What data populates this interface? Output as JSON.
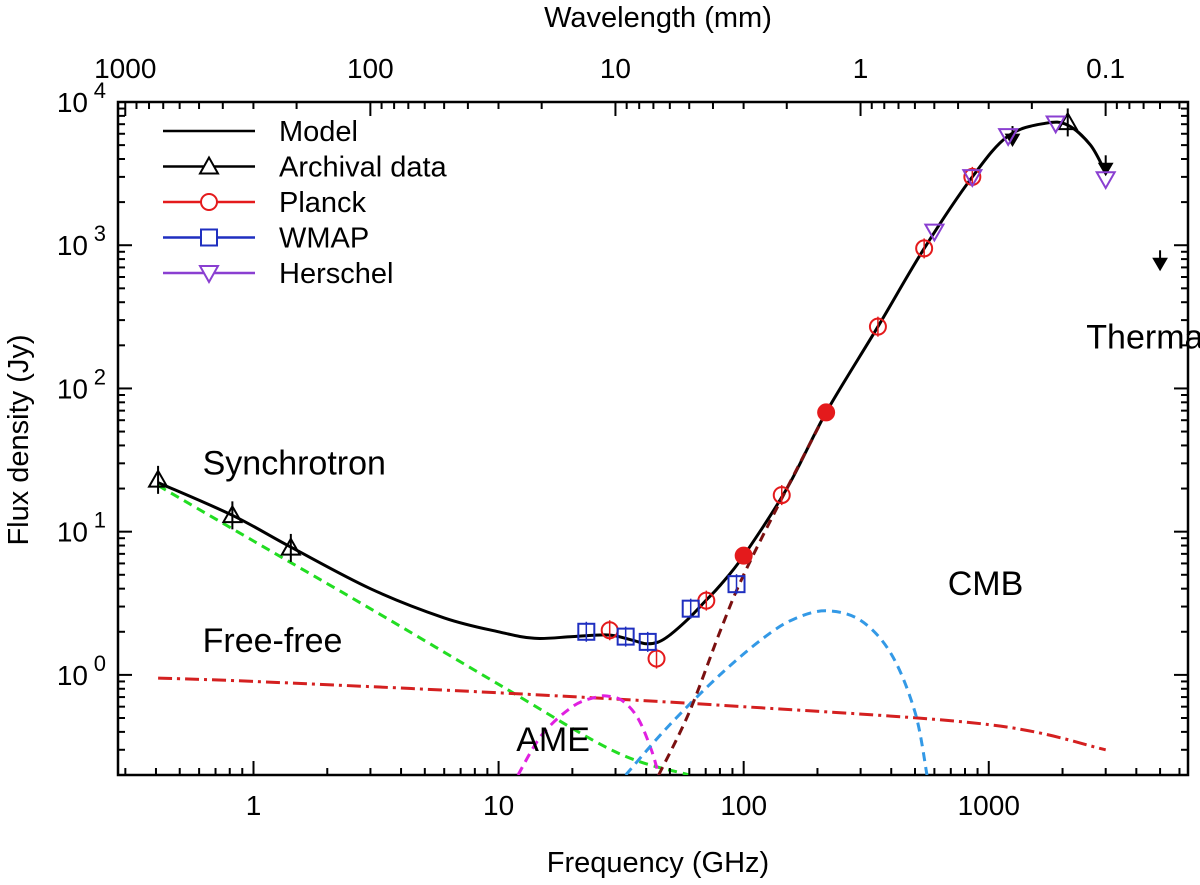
{
  "chart_data": {
    "type": "scatter",
    "title": "",
    "xlabel": "Frequency (GHz)",
    "ylabel": "Flux density (Jy)",
    "x2label": "Wavelength (mm)",
    "xscale": "log",
    "yscale": "log",
    "xlim": [
      0.28,
      6500
    ],
    "ylim": [
      0.2,
      10000
    ],
    "x_ticks": [
      {
        "value": 1,
        "label": "1"
      },
      {
        "value": 10,
        "label": "10"
      },
      {
        "value": 100,
        "label": "100"
      },
      {
        "value": 1000,
        "label": "1000"
      }
    ],
    "y_ticks": [
      {
        "value": 1,
        "base": "10",
        "exp": "0"
      },
      {
        "value": 10,
        "base": "10",
        "exp": "1"
      },
      {
        "value": 100,
        "base": "10",
        "exp": "2"
      },
      {
        "value": 1000,
        "base": "10",
        "exp": "3"
      },
      {
        "value": 10000,
        "base": "10",
        "exp": "4"
      }
    ],
    "x2_ticks": [
      {
        "wavelength_mm": 1000,
        "label": "1000"
      },
      {
        "wavelength_mm": 100,
        "label": "100"
      },
      {
        "wavelength_mm": 10,
        "label": "10"
      },
      {
        "wavelength_mm": 1,
        "label": "1"
      },
      {
        "wavelength_mm": 0.1,
        "label": "0.1"
      }
    ],
    "legend": {
      "position": "top-left",
      "entries": [
        {
          "label": "Model",
          "color": "#000000",
          "marker": "none"
        },
        {
          "label": "Archival data",
          "color": "#000000",
          "marker": "triangle-up"
        },
        {
          "label": "Planck",
          "color": "#e41a1c",
          "marker": "circle"
        },
        {
          "label": "WMAP",
          "color": "#1f2fc0",
          "marker": "square"
        },
        {
          "label": "Herschel",
          "color": "#8a3fd1",
          "marker": "triangle-down"
        }
      ]
    },
    "series": [
      {
        "name": "Archival data",
        "color": "#000000",
        "marker": "triangle-up",
        "x": [
          0.408,
          0.82,
          1.42,
          2100
        ],
        "y": [
          23,
          13,
          7.7,
          7200
        ]
      },
      {
        "name": "Archival data (upper limits)",
        "color": "#000000",
        "marker": "arrow-down",
        "x": [
          1250,
          3000,
          5000
        ],
        "y": [
          5600,
          3500,
          760
        ]
      },
      {
        "name": "Planck",
        "color": "#e41a1c",
        "marker": "circle",
        "x": [
          28.4,
          44.1,
          70.4,
          143,
          353,
          545,
          857
        ],
        "y": [
          2.05,
          1.3,
          3.3,
          18,
          270,
          950,
          3000
        ]
      },
      {
        "name": "Planck (filled)",
        "color": "#e41a1c",
        "marker": "circle-filled",
        "x": [
          100,
          217
        ],
        "y": [
          6.8,
          68
        ]
      },
      {
        "name": "WMAP",
        "color": "#1f2fc0",
        "marker": "square",
        "x": [
          22.8,
          33,
          40.6,
          60.8,
          93.5
        ],
        "y": [
          2.0,
          1.85,
          1.7,
          2.9,
          4.3
        ]
      },
      {
        "name": "Herschel",
        "color": "#8a3fd1",
        "marker": "triangle-down",
        "x": [
          600,
          857,
          1200,
          1875,
          3000
        ],
        "y": [
          1250,
          3000,
          5800,
          7100,
          2900
        ]
      }
    ],
    "curves": [
      {
        "name": "Model",
        "color": "#000000",
        "style": "solid",
        "x": [
          0.408,
          0.82,
          1.42,
          3,
          6,
          10,
          14,
          20,
          28,
          35,
          40,
          45,
          50,
          60,
          70,
          80,
          100,
          150,
          217,
          353,
          545,
          857,
          1200,
          1700,
          2100,
          2600,
          3000
        ],
        "y": [
          22,
          13,
          7.8,
          4.0,
          2.5,
          2.0,
          1.8,
          1.85,
          1.9,
          1.75,
          1.65,
          1.7,
          1.9,
          2.5,
          3.3,
          4.2,
          6.8,
          20,
          68,
          270,
          950,
          3000,
          5800,
          7100,
          6900,
          5000,
          3200
        ]
      },
      {
        "name": "Synchrotron",
        "color": "#22dd22",
        "style": "dashed",
        "x": [
          0.408,
          1,
          3,
          10,
          30,
          60
        ],
        "y": [
          21,
          8.6,
          2.9,
          0.86,
          0.29,
          0.2
        ]
      },
      {
        "name": "Free-free",
        "color": "#d42020",
        "style": "dash-dot",
        "x": [
          0.408,
          1,
          10,
          100,
          1000,
          3000
        ],
        "y": [
          0.95,
          0.9,
          0.75,
          0.6,
          0.45,
          0.3
        ]
      },
      {
        "name": "AME",
        "color": "#e020e0",
        "style": "dashed",
        "x": [
          12,
          15,
          20,
          25,
          28,
          32,
          37,
          42,
          45
        ],
        "y": [
          0.2,
          0.38,
          0.6,
          0.7,
          0.71,
          0.66,
          0.5,
          0.3,
          0.2
        ]
      },
      {
        "name": "CMB",
        "color": "#3399e6",
        "style": "dashed",
        "x": [
          33,
          50,
          80,
          120,
          160,
          217,
          300,
          400,
          500,
          560
        ],
        "y": [
          0.2,
          0.45,
          1.0,
          1.8,
          2.45,
          2.8,
          2.4,
          1.4,
          0.55,
          0.2
        ]
      },
      {
        "name": "Thermal dust",
        "color": "#7b1010",
        "style": "dashed",
        "x": [
          45,
          60,
          80,
          100,
          150,
          217
        ],
        "y": [
          0.2,
          0.55,
          2.0,
          5.0,
          20,
          68
        ]
      }
    ],
    "annotations": [
      {
        "text": "Synchrotron",
        "x": 0.62,
        "y": 25
      },
      {
        "text": "Thermal dust",
        "x": 2500,
        "y": 190
      },
      {
        "text": "CMB",
        "x": 680,
        "y": 3.6
      },
      {
        "text": "Free-free",
        "x": 0.62,
        "y": 1.45
      },
      {
        "text": "AME",
        "x": 11.8,
        "y": 0.295
      }
    ]
  }
}
